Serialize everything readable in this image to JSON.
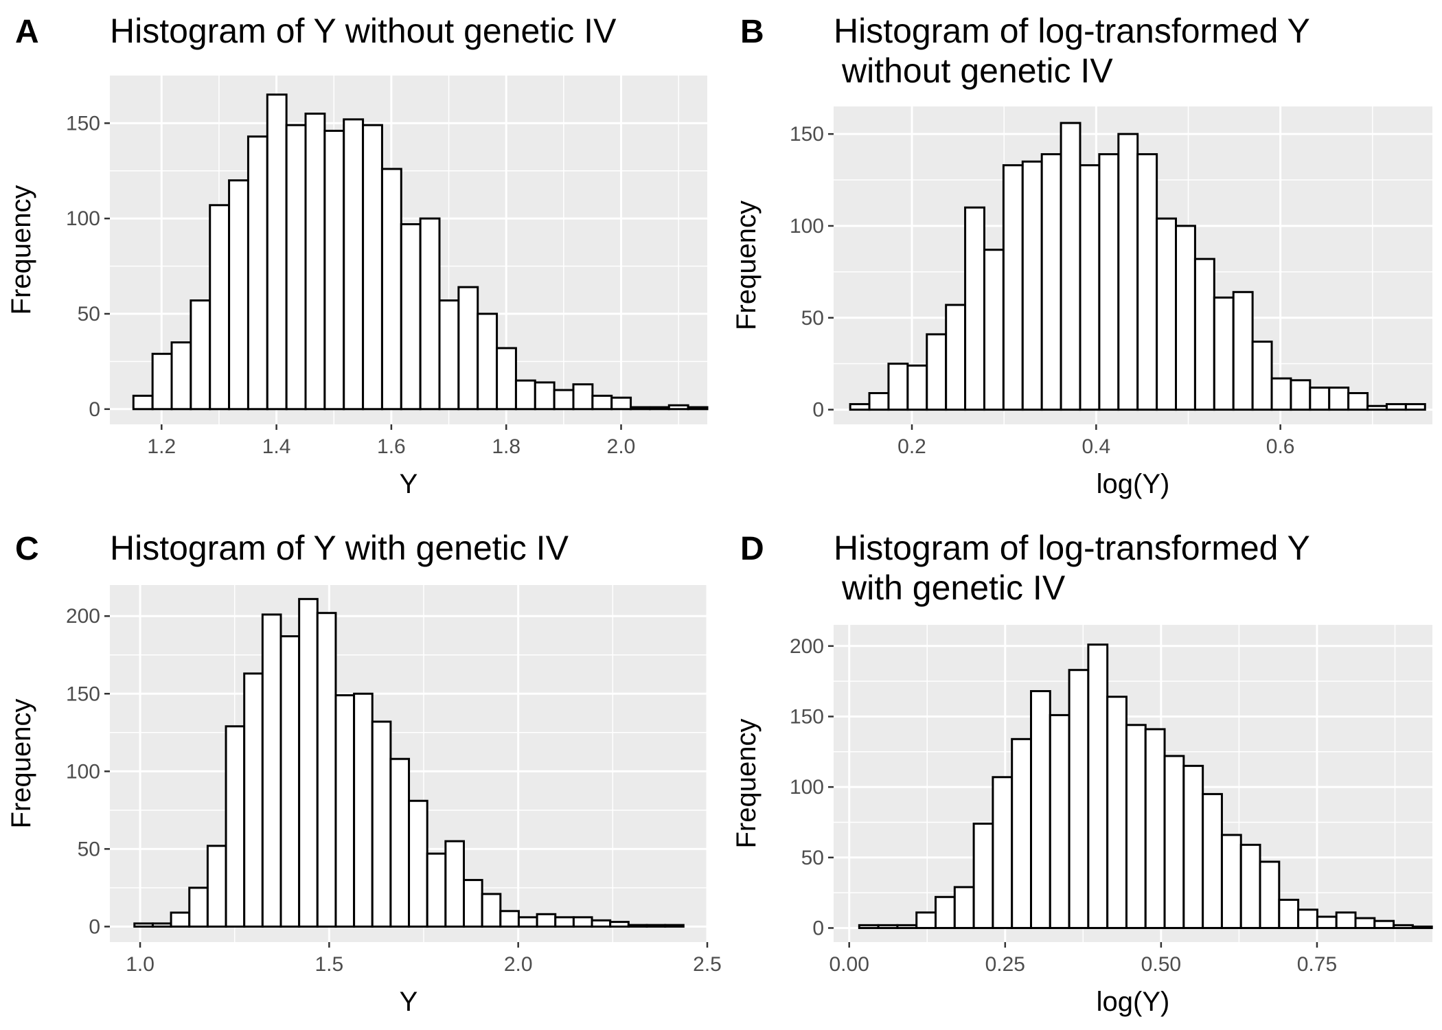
{
  "chart_data": [
    {
      "tag": "A",
      "type": "bar",
      "title": [
        "Histogram of Y without genetic IV"
      ],
      "xlabel": "Y",
      "ylabel": "Frequency",
      "xlim": [
        1.11,
        2.15
      ],
      "ylim": [
        -8,
        175
      ],
      "xticks": [
        1.2,
        1.4,
        1.6,
        1.8,
        2.0
      ],
      "xtick_labels": [
        "1.2",
        "1.4",
        "1.6",
        "1.8",
        "2.0"
      ],
      "xminor": [
        1.1,
        1.3,
        1.5,
        1.7,
        1.9,
        2.1
      ],
      "yticks": [
        0,
        50,
        100,
        150
      ],
      "ytick_labels": [
        "0",
        "50",
        "100",
        "150"
      ],
      "yminor": [
        25,
        75,
        125
      ],
      "bin_start": 1.151,
      "bin_width": 0.0333,
      "values": [
        7,
        29,
        35,
        57,
        107,
        120,
        143,
        165,
        149,
        155,
        146,
        152,
        149,
        126,
        97,
        100,
        57,
        64,
        50,
        32,
        15,
        14,
        10,
        13,
        7,
        6,
        1,
        1,
        2,
        1
      ]
    },
    {
      "tag": "B",
      "type": "bar",
      "title": [
        "Histogram of log-transformed Y",
        "without genetic IV"
      ],
      "xlabel": "log(Y)",
      "ylabel": "Frequency",
      "xlim": [
        0.115,
        0.765
      ],
      "ylim": [
        -8,
        165
      ],
      "xticks": [
        0.2,
        0.4,
        0.6
      ],
      "xtick_labels": [
        "0.2",
        "0.4",
        "0.6"
      ],
      "xminor": [
        0.1,
        0.3,
        0.5,
        0.7
      ],
      "yticks": [
        0,
        50,
        100,
        150
      ],
      "ytick_labels": [
        "0",
        "50",
        "100",
        "150"
      ],
      "yminor": [
        25,
        75,
        125
      ],
      "bin_start": 0.133,
      "bin_width": 0.0208,
      "values": [
        3,
        9,
        25,
        24,
        41,
        57,
        110,
        87,
        133,
        135,
        139,
        156,
        133,
        139,
        150,
        139,
        104,
        100,
        82,
        61,
        64,
        37,
        17,
        16,
        12,
        12,
        9,
        2,
        3,
        3
      ]
    },
    {
      "tag": "C",
      "type": "bar",
      "title": [
        "Histogram of Y with genetic IV"
      ],
      "xlabel": "Y",
      "ylabel": "Frequency",
      "xlim": [
        0.92,
        2.5
      ],
      "ylim": [
        -10,
        220
      ],
      "xticks": [
        1.0,
        1.5,
        2.0,
        2.5
      ],
      "xtick_labels": [
        "1.0",
        "1.5",
        "2.0",
        "2.5"
      ],
      "xminor": [
        1.25,
        1.75,
        2.25
      ],
      "yticks": [
        0,
        50,
        100,
        150,
        200
      ],
      "ytick_labels": [
        "0",
        "50",
        "100",
        "150",
        "200"
      ],
      "yminor": [
        25,
        75,
        125,
        175
      ],
      "bin_start": 0.985,
      "bin_width": 0.0484,
      "values": [
        2,
        2,
        9,
        25,
        52,
        129,
        163,
        201,
        187,
        211,
        202,
        149,
        150,
        132,
        108,
        81,
        47,
        55,
        30,
        21,
        10,
        6,
        8,
        6,
        6,
        4,
        3,
        1,
        1,
        1
      ]
    },
    {
      "tag": "D",
      "type": "bar",
      "title": [
        "Histogram of log-transformed Y",
        "with genetic IV"
      ],
      "xlabel": "log(Y)",
      "ylabel": "Frequency",
      "xlim": [
        -0.025,
        0.935
      ],
      "ylim": [
        -10,
        215
      ],
      "xticks": [
        0.0,
        0.25,
        0.5,
        0.75
      ],
      "xtick_labels": [
        "0.00",
        "0.25",
        "0.50",
        "0.75"
      ],
      "xminor": [
        0.125,
        0.375,
        0.625,
        0.875
      ],
      "yticks": [
        0,
        50,
        100,
        150,
        200
      ],
      "ytick_labels": [
        "0",
        "50",
        "100",
        "150",
        "200"
      ],
      "yminor": [
        25,
        75,
        125,
        175
      ],
      "bin_start": 0.0161,
      "bin_width": 0.0306,
      "values": [
        2,
        2,
        2,
        11,
        22,
        29,
        74,
        107,
        134,
        168,
        151,
        183,
        201,
        164,
        144,
        141,
        122,
        115,
        95,
        66,
        59,
        47,
        20,
        13,
        8,
        11,
        7,
        5,
        2,
        1
      ]
    }
  ]
}
